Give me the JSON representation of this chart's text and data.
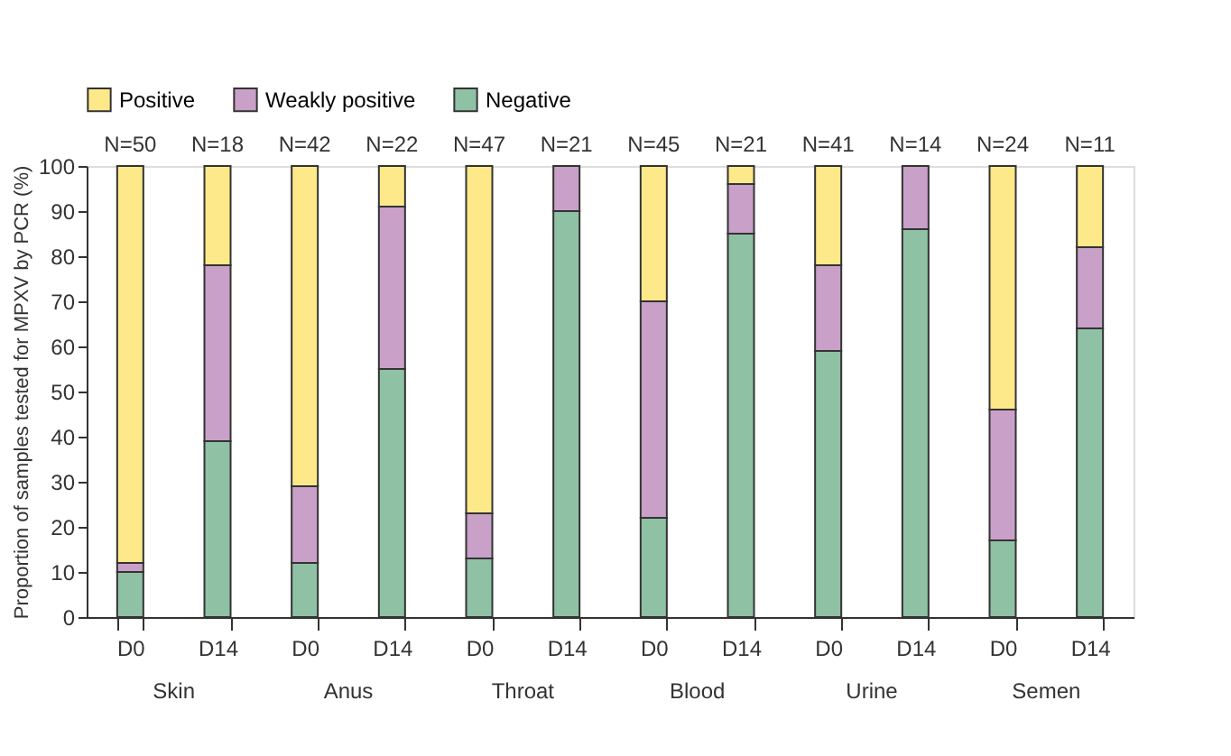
{
  "chart_data": {
    "type": "bar",
    "stacked": true,
    "ylabel": "Proportion of samples tested for MPXV by PCR (%)",
    "categories": [
      "D0",
      "D14",
      "D0",
      "D14",
      "D0",
      "D14",
      "D0",
      "D14",
      "D0",
      "D14",
      "D0",
      "D14"
    ],
    "series": [
      {
        "name": "Negative",
        "color": "#8fc1a4",
        "values": [
          10,
          39,
          12,
          55,
          13,
          90,
          22,
          85,
          59,
          86,
          17,
          64
        ]
      },
      {
        "name": "Weakly positive",
        "color": "#c9a0c8",
        "values": [
          2,
          39,
          17,
          36,
          10,
          10,
          48,
          11,
          19,
          14,
          29,
          18
        ]
      },
      {
        "name": "Positive",
        "color": "#fde98a",
        "values": [
          88,
          22,
          71,
          9,
          77,
          0,
          30,
          4,
          22,
          0,
          54,
          18
        ]
      }
    ],
    "annotations": [
      "N=50",
      "N=18",
      "N=42",
      "N=22",
      "N=47",
      "N=21",
      "N=45",
      "N=21",
      "N=41",
      "N=14",
      "N=24",
      "N=11",
      "Skin",
      "Anus",
      "Throat",
      "Blood",
      "Urine",
      "Semen"
    ],
    "ylim": [
      0,
      100
    ],
    "yticks": [
      0,
      10,
      20,
      30,
      40,
      50,
      60,
      70,
      80,
      90,
      100
    ],
    "grid": false,
    "legend": "top left"
  }
}
